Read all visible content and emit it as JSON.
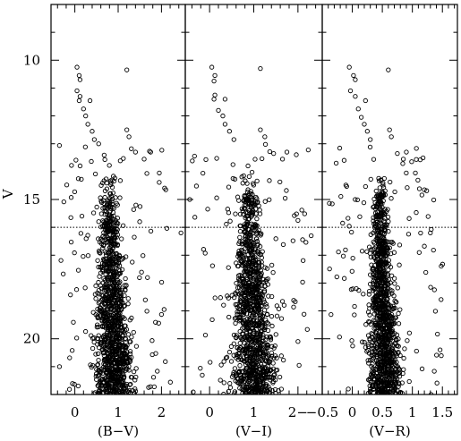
{
  "chart_data": [
    {
      "type": "scatter",
      "xlabel": "(B−V)",
      "ylabel": "V",
      "xlim": [
        -0.55,
        2.55
      ],
      "ylim": [
        22,
        8
      ],
      "xticks": [
        0,
        1,
        2
      ],
      "xtick_labels": [
        "0",
        "1",
        "2"
      ],
      "yticks": [
        10,
        15,
        20
      ],
      "ytick_labels": [
        "10",
        "15",
        "20"
      ],
      "reference_line": {
        "y": 16,
        "style": "dotted"
      },
      "marker": "open-circle",
      "bright_stars": [
        {
          "x": 0.05,
          "y": 10.25
        },
        {
          "x": 0.1,
          "y": 10.55
        },
        {
          "x": 0.12,
          "y": 10.7
        },
        {
          "x": 0.05,
          "y": 11.1
        },
        {
          "x": 0.12,
          "y": 11.3
        },
        {
          "x": 0.1,
          "y": 11.45
        },
        {
          "x": 0.35,
          "y": 11.45
        },
        {
          "x": 0.2,
          "y": 11.75
        },
        {
          "x": 0.25,
          "y": 12.0
        },
        {
          "x": 0.3,
          "y": 12.3
        },
        {
          "x": 0.4,
          "y": 12.55
        },
        {
          "x": 0.45,
          "y": 12.85
        },
        {
          "x": 0.55,
          "y": 13.0
        },
        {
          "x": 1.2,
          "y": 10.35
        },
        {
          "x": 1.2,
          "y": 12.5
        },
        {
          "x": 1.25,
          "y": 12.75
        },
        {
          "x": 1.4,
          "y": 13.3
        },
        {
          "x": 1.6,
          "y": 13.55
        },
        {
          "x": 1.75,
          "y": 13.3
        },
        {
          "x": 1.95,
          "y": 14.05
        },
        {
          "x": 2.1,
          "y": 14.65
        },
        {
          "x": 2.45,
          "y": 16.2
        }
      ],
      "population": {
        "color_center": 0.85,
        "color_width": 0.25,
        "mag_range": [
          14,
          22
        ]
      }
    },
    {
      "type": "scatter",
      "xlabel": "(V−I)",
      "ylabel": "",
      "xlim": [
        -0.55,
        2.55
      ],
      "ylim": [
        22,
        8
      ],
      "xticks": [
        0,
        1,
        2
      ],
      "xtick_labels": [
        "0",
        "1",
        "2−"
      ],
      "reference_line": {
        "y": 16,
        "style": "dotted"
      },
      "marker": "open-circle",
      "bright_stars": [
        {
          "x": 0.05,
          "y": 10.25
        },
        {
          "x": 0.12,
          "y": 10.55
        },
        {
          "x": 0.1,
          "y": 10.75
        },
        {
          "x": 0.12,
          "y": 11.25
        },
        {
          "x": 0.1,
          "y": 11.4
        },
        {
          "x": 0.35,
          "y": 11.4
        },
        {
          "x": 0.2,
          "y": 11.8
        },
        {
          "x": 0.3,
          "y": 12.0
        },
        {
          "x": 0.35,
          "y": 12.3
        },
        {
          "x": 0.45,
          "y": 12.55
        },
        {
          "x": 0.55,
          "y": 12.85
        },
        {
          "x": 1.15,
          "y": 10.3
        },
        {
          "x": 1.15,
          "y": 12.5
        },
        {
          "x": 1.25,
          "y": 12.75
        },
        {
          "x": 1.45,
          "y": 13.35
        },
        {
          "x": 1.65,
          "y": 13.55
        },
        {
          "x": 1.75,
          "y": 13.3
        },
        {
          "x": -0.45,
          "y": 15.0
        },
        {
          "x": 2.0,
          "y": 15.75
        },
        {
          "x": 2.3,
          "y": 16.3
        }
      ],
      "population": {
        "color_center": 0.95,
        "color_width": 0.3,
        "mag_range": [
          14,
          22
        ]
      }
    },
    {
      "type": "scatter",
      "xlabel": "(V−R)",
      "ylabel": "",
      "xlim": [
        -0.5,
        1.75
      ],
      "ylim": [
        22,
        8
      ],
      "xticks": [
        -0.5,
        0,
        0.5,
        1,
        1.5
      ],
      "xtick_labels": [
        "−0.5",
        "0",
        "0.5",
        "1",
        "1.5"
      ],
      "reference_line": {
        "y": 16,
        "style": "dotted"
      },
      "marker": "open-circle",
      "bright_stars": [
        {
          "x": -0.05,
          "y": 10.25
        },
        {
          "x": 0.02,
          "y": 10.55
        },
        {
          "x": 0.05,
          "y": 10.7
        },
        {
          "x": -0.03,
          "y": 11.1
        },
        {
          "x": 0.05,
          "y": 11.3
        },
        {
          "x": 0.22,
          "y": 11.45
        },
        {
          "x": 0.1,
          "y": 11.75
        },
        {
          "x": 0.15,
          "y": 12.05
        },
        {
          "x": 0.2,
          "y": 12.3
        },
        {
          "x": 0.25,
          "y": 12.55
        },
        {
          "x": 0.3,
          "y": 12.85
        },
        {
          "x": 0.6,
          "y": 10.35
        },
        {
          "x": 0.62,
          "y": 12.5
        },
        {
          "x": 0.65,
          "y": 12.75
        },
        {
          "x": 0.75,
          "y": 13.35
        },
        {
          "x": 0.85,
          "y": 13.55
        },
        {
          "x": 0.9,
          "y": 13.3
        },
        {
          "x": 1.05,
          "y": 14.05
        },
        {
          "x": 1.2,
          "y": 14.65
        },
        {
          "x": 1.3,
          "y": 16.2
        }
      ],
      "population": {
        "color_center": 0.5,
        "color_width": 0.16,
        "mag_range": [
          14,
          22
        ]
      }
    }
  ]
}
